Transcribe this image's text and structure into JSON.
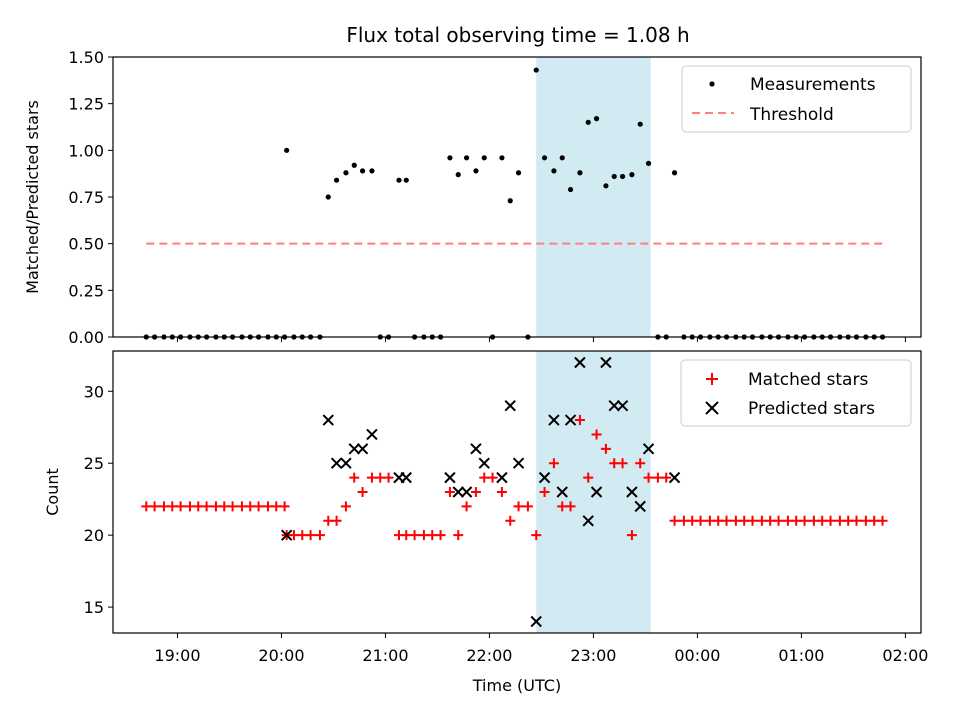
{
  "chart_data": {
    "type": "scatter",
    "title": "Flux total observing time = 1.08 h",
    "xlabel": "Time (UTC)",
    "x_ticks": [
      "19:00",
      "20:00",
      "21:00",
      "22:00",
      "23:00",
      "00:00",
      "01:00",
      "02:00"
    ],
    "x_tick_hours": [
      19,
      20,
      21,
      22,
      23,
      24,
      25,
      26
    ],
    "xlim_hours": [
      18.38,
      26.15
    ],
    "shaded_interval_hours": [
      22.45,
      23.55
    ],
    "shade_color": "#add8e6",
    "top": {
      "ylabel": "Matched/Predicted stars",
      "ylim": [
        0,
        1.5
      ],
      "y_ticks": [
        "0.00",
        "0.25",
        "0.50",
        "0.75",
        "1.00",
        "1.25",
        "1.50"
      ],
      "y_tick_values": [
        0,
        0.25,
        0.5,
        0.75,
        1.0,
        1.25,
        1.5
      ],
      "legend": [
        "Measurements",
        "Threshold"
      ],
      "legend_position": "top-right",
      "threshold": {
        "value": 0.5,
        "x_range_hours": [
          18.7,
          25.82
        ],
        "color": "#ff7f7f"
      },
      "measurements": {
        "color": "#000000",
        "x_hours": [
          18.7,
          18.78,
          18.87,
          18.95,
          19.03,
          19.12,
          19.2,
          19.28,
          19.37,
          19.45,
          19.53,
          19.62,
          19.7,
          19.78,
          19.87,
          19.95,
          20.03,
          20.05,
          20.12,
          20.2,
          20.28,
          20.37,
          20.45,
          20.53,
          20.62,
          20.7,
          20.78,
          20.87,
          20.95,
          21.03,
          21.13,
          21.2,
          21.28,
          21.37,
          21.45,
          21.53,
          21.62,
          21.7,
          21.78,
          21.87,
          21.95,
          22.03,
          22.12,
          22.2,
          22.28,
          22.37,
          22.45,
          22.53,
          22.62,
          22.7,
          22.78,
          22.87,
          22.95,
          23.03,
          23.12,
          23.2,
          23.28,
          23.37,
          23.45,
          23.53,
          23.62,
          23.7,
          23.78,
          23.87,
          23.95,
          24.03,
          24.12,
          24.2,
          24.28,
          24.37,
          24.45,
          24.53,
          24.62,
          24.7,
          24.78,
          24.87,
          24.95,
          25.03,
          25.12,
          25.2,
          25.28,
          25.37,
          25.45,
          25.53,
          25.62,
          25.7,
          25.78
        ],
        "values": [
          0,
          0,
          0,
          0,
          0,
          0,
          0,
          0,
          0,
          0,
          0,
          0,
          0,
          0,
          0,
          0,
          0,
          1.0,
          0,
          0,
          0,
          0,
          0.75,
          0.84,
          0.88,
          0.92,
          0.89,
          0.89,
          0,
          0,
          0.84,
          0.84,
          0,
          0,
          0,
          0,
          0.96,
          0.87,
          0.96,
          0.89,
          0.96,
          0,
          0.96,
          0.73,
          0.88,
          0,
          1.43,
          0.96,
          0.89,
          0.96,
          0.79,
          0.88,
          1.15,
          1.17,
          0.81,
          0.86,
          0.86,
          0.87,
          1.14,
          0.93,
          0,
          0,
          0.88,
          0,
          0,
          0,
          0,
          0,
          0,
          0,
          0,
          0,
          0,
          0,
          0,
          0,
          0,
          0,
          0,
          0,
          0,
          0,
          0,
          0,
          0,
          0,
          0
        ]
      }
    },
    "bottom": {
      "ylabel": "Count",
      "ylim": [
        13.2,
        32.8
      ],
      "y_ticks": [
        "15",
        "20",
        "25",
        "30"
      ],
      "y_tick_values": [
        15,
        20,
        25,
        30
      ],
      "legend": [
        "Matched stars",
        "Predicted stars"
      ],
      "legend_position": "top-right",
      "matched": {
        "color": "#ff0000",
        "x_hours": [
          18.7,
          18.78,
          18.87,
          18.95,
          19.03,
          19.12,
          19.2,
          19.28,
          19.37,
          19.45,
          19.53,
          19.62,
          19.7,
          19.78,
          19.87,
          19.95,
          20.03,
          20.05,
          20.12,
          20.2,
          20.28,
          20.37,
          20.45,
          20.53,
          20.62,
          20.7,
          20.78,
          20.87,
          20.95,
          21.03,
          21.13,
          21.2,
          21.28,
          21.37,
          21.45,
          21.53,
          21.62,
          21.7,
          21.78,
          21.87,
          21.95,
          22.03,
          22.12,
          22.2,
          22.28,
          22.37,
          22.45,
          22.53,
          22.62,
          22.7,
          22.78,
          22.87,
          22.95,
          23.03,
          23.12,
          23.2,
          23.28,
          23.37,
          23.45,
          23.53,
          23.62,
          23.7,
          23.78,
          23.87,
          23.95,
          24.03,
          24.12,
          24.2,
          24.28,
          24.37,
          24.45,
          24.53,
          24.62,
          24.7,
          24.78,
          24.87,
          24.95,
          25.03,
          25.12,
          25.2,
          25.28,
          25.37,
          25.45,
          25.53,
          25.62,
          25.7,
          25.78
        ],
        "values": [
          22,
          22,
          22,
          22,
          22,
          22,
          22,
          22,
          22,
          22,
          22,
          22,
          22,
          22,
          22,
          22,
          22,
          20,
          20,
          20,
          20,
          20,
          21,
          21,
          22,
          24,
          23,
          24,
          24,
          24,
          20,
          20,
          20,
          20,
          20,
          20,
          23,
          20,
          22,
          23,
          24,
          24,
          23,
          21,
          22,
          22,
          20,
          23,
          25,
          22,
          22,
          28,
          24,
          27,
          26,
          25,
          25,
          20,
          25,
          24,
          24,
          24,
          21,
          21,
          21,
          21,
          21,
          21,
          21,
          21,
          21,
          21,
          21,
          21,
          21,
          21,
          21,
          21,
          21,
          21,
          21,
          21,
          21,
          21,
          21,
          21,
          21
        ]
      },
      "predicted": {
        "color": "#000000",
        "x_hours": [
          20.05,
          20.45,
          20.53,
          20.62,
          20.7,
          20.78,
          20.87,
          21.13,
          21.2,
          21.62,
          21.7,
          21.78,
          21.87,
          21.95,
          22.12,
          22.2,
          22.28,
          22.45,
          22.53,
          22.62,
          22.7,
          22.78,
          22.87,
          22.95,
          23.03,
          23.12,
          23.2,
          23.28,
          23.37,
          23.45,
          23.53,
          23.78
        ],
        "values": [
          20,
          28,
          25,
          25,
          26,
          26,
          27,
          24,
          24,
          24,
          23,
          23,
          26,
          25,
          24,
          29,
          25,
          14,
          24,
          28,
          23,
          28,
          32,
          21,
          23,
          32,
          29,
          29,
          23,
          22,
          26,
          24
        ]
      }
    }
  }
}
